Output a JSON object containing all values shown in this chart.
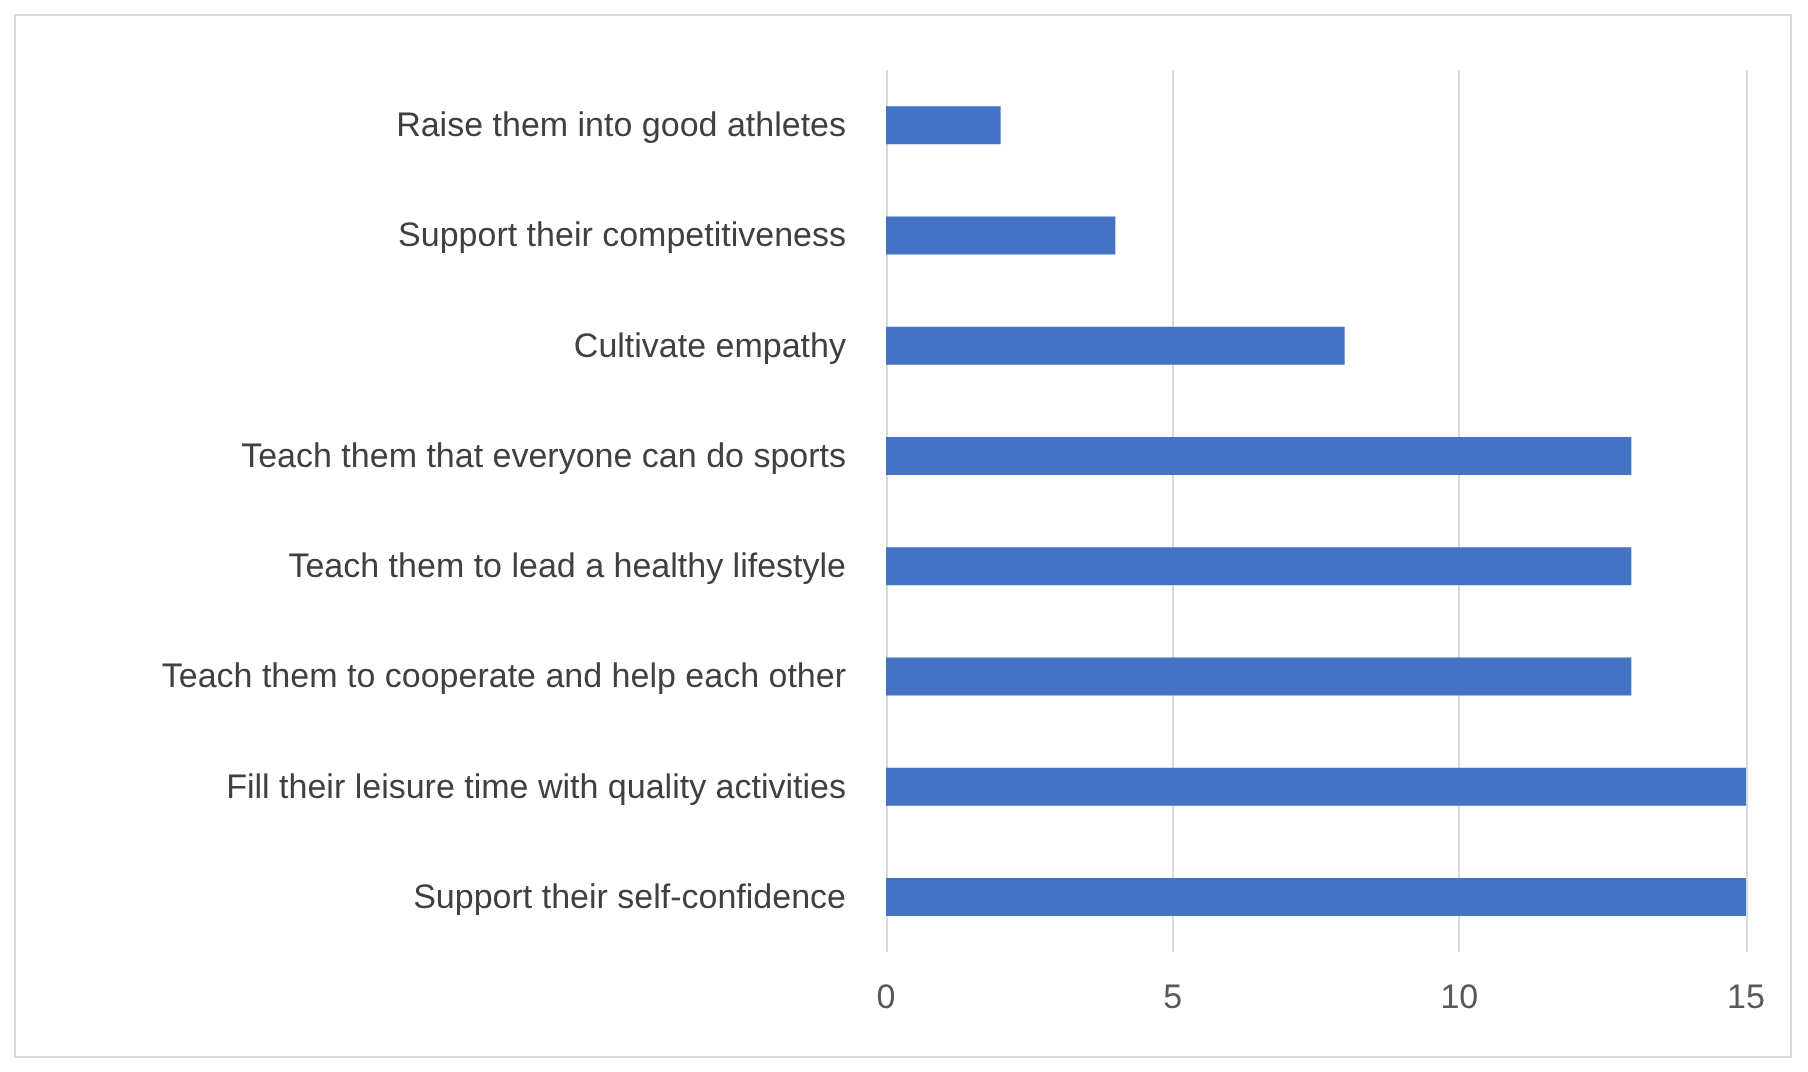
{
  "chart_data": {
    "type": "bar",
    "orientation": "horizontal",
    "categories": [
      "Raise them into good athletes",
      "Support their competitiveness",
      "Cultivate empathy",
      "Teach them that everyone can do sports",
      "Teach them to lead a healthy lifestyle",
      "Teach them to cooperate and help each other",
      "Fill their leisure time with quality activities",
      "Support their self-confidence"
    ],
    "values": [
      2,
      4,
      8,
      13,
      13,
      13,
      15,
      15
    ],
    "color": "#4472c4",
    "xlim": [
      0,
      15
    ],
    "xticks": [
      0,
      5,
      10,
      15
    ],
    "grid": "x"
  }
}
